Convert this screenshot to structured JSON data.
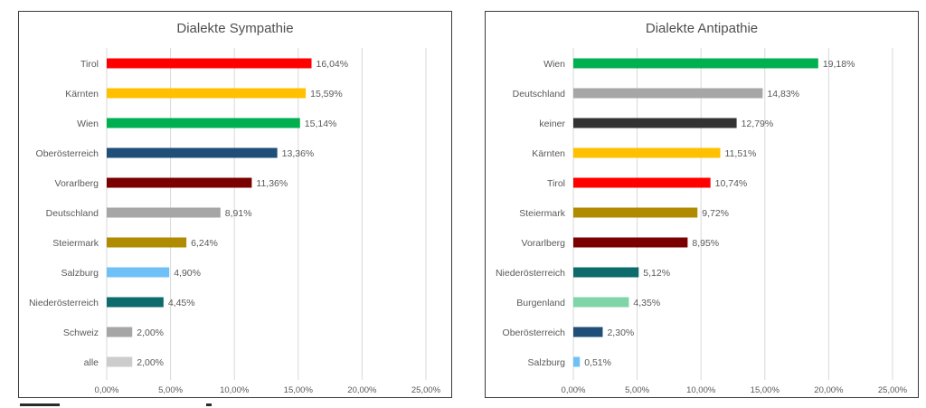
{
  "chart_data": [
    {
      "type": "bar",
      "orientation": "horizontal",
      "title": "Dialekte Sympathie",
      "categories": [
        "Tirol",
        "Kärnten",
        "Wien",
        "Oberösterreich",
        "Vorarlberg",
        "Deutschland",
        "Steiermark",
        "Salzburg",
        "Niederösterreich",
        "Schweiz",
        "alle"
      ],
      "values": [
        16.04,
        15.59,
        15.14,
        13.36,
        11.36,
        8.91,
        6.24,
        4.9,
        4.45,
        2.0,
        2.0
      ],
      "value_labels": [
        "16,04%",
        "15,59%",
        "15,14%",
        "13,36%",
        "11,36%",
        "8,91%",
        "6,24%",
        "4,90%",
        "4,45%",
        "2,00%",
        "2,00%"
      ],
      "colors": [
        "#ff0000",
        "#ffc000",
        "#00b050",
        "#1f4e79",
        "#7b0000",
        "#a6a6a6",
        "#b08a00",
        "#70c0f8",
        "#0e6b6b",
        "#a6a6a6",
        "#cccccc"
      ],
      "xlim": [
        0,
        25
      ],
      "tick_labels": [
        "0,00%",
        "5,00%",
        "10,00%",
        "15,00%",
        "20,00%",
        "25,00%"
      ],
      "grid": true,
      "legend": "none"
    },
    {
      "type": "bar",
      "orientation": "horizontal",
      "title": "Dialekte Antipathie",
      "categories": [
        "Wien",
        "Deutschland",
        "keiner",
        "Kärnten",
        "Tirol",
        "Steiermark",
        "Vorarlberg",
        "Niederösterreich",
        "Burgenland",
        "Oberösterreich",
        "Salzburg"
      ],
      "values": [
        19.18,
        14.83,
        12.79,
        11.51,
        10.74,
        9.72,
        8.95,
        5.12,
        4.35,
        2.3,
        0.51
      ],
      "value_labels": [
        "19,18%",
        "14,83%",
        "12,79%",
        "11,51%",
        "10,74%",
        "9,72%",
        "8,95%",
        "5,12%",
        "4,35%",
        "2,30%",
        "0,51%"
      ],
      "colors": [
        "#00b050",
        "#a6a6a6",
        "#333333",
        "#ffc000",
        "#ff0000",
        "#b08a00",
        "#7b0000",
        "#0e6b6b",
        "#7fd4a8",
        "#1f4e79",
        "#70c0f8"
      ],
      "xlim": [
        0,
        25
      ],
      "tick_labels": [
        "0,00%",
        "5,00%",
        "10,00%",
        "15,00%",
        "20,00%",
        "25,00%"
      ],
      "grid": true,
      "legend": "none"
    }
  ]
}
